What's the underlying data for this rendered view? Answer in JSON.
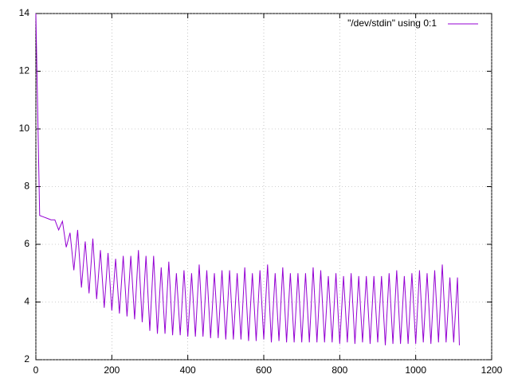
{
  "chart_data": {
    "type": "line",
    "x": [
      0,
      10,
      20,
      30,
      40,
      50,
      60,
      70,
      80,
      90,
      100,
      110,
      120,
      130,
      140,
      150,
      160,
      170,
      180,
      190,
      200,
      210,
      220,
      230,
      240,
      250,
      260,
      270,
      280,
      290,
      300,
      310,
      320,
      330,
      340,
      350,
      360,
      370,
      380,
      390,
      400,
      410,
      420,
      430,
      440,
      450,
      460,
      470,
      480,
      490,
      500,
      510,
      520,
      530,
      540,
      550,
      560,
      570,
      580,
      590,
      600,
      610,
      620,
      630,
      640,
      650,
      660,
      670,
      680,
      690,
      700,
      710,
      720,
      730,
      740,
      750,
      760,
      770,
      780,
      790,
      800,
      810,
      820,
      830,
      840,
      850,
      860,
      870,
      880,
      890,
      900,
      910,
      920,
      930,
      940,
      950,
      960,
      970,
      980,
      990,
      1000,
      1010,
      1020,
      1030,
      1040,
      1050,
      1060,
      1070,
      1080,
      1090,
      1100,
      1110,
      1115
    ],
    "series": [
      {
        "name": "\"/dev/stdin\" using 0:1",
        "color": "#9400d3",
        "values": [
          14,
          7.0,
          6.95,
          6.9,
          6.85,
          6.85,
          6.5,
          6.8,
          5.9,
          6.4,
          5.1,
          6.5,
          4.5,
          6.1,
          4.3,
          6.2,
          4.1,
          5.8,
          3.8,
          5.7,
          3.7,
          5.5,
          3.6,
          5.6,
          3.5,
          5.6,
          3.4,
          5.8,
          3.3,
          5.6,
          3.0,
          5.6,
          2.9,
          5.2,
          2.9,
          5.4,
          2.85,
          5.0,
          2.85,
          5.1,
          2.8,
          5.0,
          2.8,
          5.3,
          2.8,
          5.1,
          2.75,
          5.0,
          2.75,
          5.1,
          2.7,
          5.1,
          2.7,
          5.0,
          2.7,
          5.2,
          2.65,
          5.0,
          2.65,
          5.1,
          2.7,
          5.3,
          2.6,
          5.0,
          2.65,
          5.2,
          2.6,
          5.0,
          2.6,
          5.0,
          2.6,
          5.0,
          2.6,
          5.2,
          2.6,
          5.1,
          2.6,
          4.9,
          2.6,
          5.0,
          2.55,
          4.9,
          2.6,
          5.0,
          2.55,
          4.9,
          2.6,
          4.9,
          2.55,
          4.9,
          2.6,
          4.9,
          2.5,
          5.0,
          2.55,
          5.1,
          2.55,
          4.9,
          2.55,
          5.0,
          2.55,
          5.1,
          2.6,
          5.0,
          2.55,
          5.1,
          2.6,
          5.3,
          2.6,
          4.85,
          2.6,
          4.85,
          2.5
        ]
      }
    ],
    "xlim": [
      0,
      1200
    ],
    "xticks": [
      0,
      200,
      400,
      600,
      800,
      1000,
      1200
    ],
    "ylim": [
      2,
      14
    ],
    "yticks": [
      2,
      4,
      6,
      8,
      10,
      12,
      14
    ],
    "grid": true,
    "legend": "top-right"
  }
}
